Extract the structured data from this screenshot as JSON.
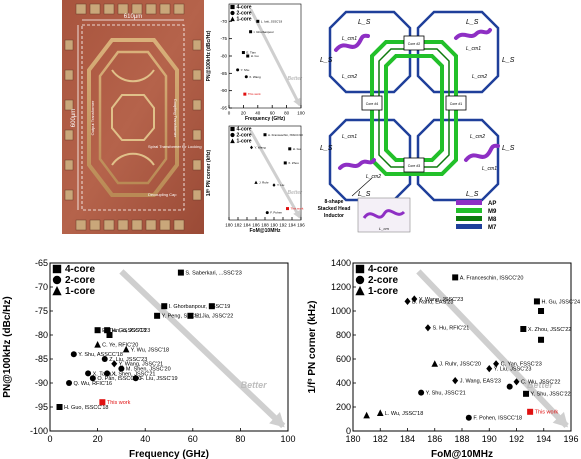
{
  "die_photo": {
    "width_label": "610μm",
    "height_label": "600μm",
    "ann_left": "Output Transformer",
    "ann_right": "Coupling Transformer",
    "ann_center": "Spiral Transformer for Locking",
    "ann_decap": "Decoupling Cap"
  },
  "schematic": {
    "labels_ls": [
      "L_S",
      "L_S",
      "L_S",
      "L_S",
      "L_S",
      "L_S",
      "L_S",
      "L_S"
    ],
    "labels_lcm": [
      "L_cm1",
      "L_cm1",
      "L_cm2",
      "L_cm2",
      "L_cm1",
      "L_cm2",
      "L_cm2",
      "L_cm1"
    ],
    "core_labels": [
      "Core #2",
      "Core #1",
      "Core #4",
      "Core #3"
    ],
    "callout_line1": "8-shape",
    "callout_line2": "Stacked Head",
    "callout_line3": "Inductor",
    "callout_sub": "L_cm",
    "legend": [
      {
        "label": "AP",
        "color": "#8e2fc4"
      },
      {
        "label": "M9",
        "color": "#22c02a"
      },
      {
        "label": "M8",
        "color": "#0d7a0d"
      },
      {
        "label": "M7",
        "color": "#1f3f9a"
      }
    ]
  },
  "chart_data": [
    {
      "id": "pn-vs-frequency",
      "type": "scatter",
      "xlabel": "Frequency (GHz)",
      "ylabel": "PN@100kHz (dBc/Hz)",
      "xlim": [
        0,
        100
      ],
      "ylim": [
        -100,
        -65
      ],
      "xticks": [
        0,
        20,
        40,
        60,
        80,
        100
      ],
      "yticks": [
        -65,
        -70,
        -75,
        -80,
        -85,
        -90,
        -95,
        -100
      ],
      "grid": false,
      "legend": [
        "4-core",
        "2-core",
        "1-core"
      ],
      "legend_position": "top-left",
      "trend_label": "Better",
      "points": [
        {
          "x": 55,
          "y": -67,
          "label": "S. Saberkari, ...SSC'23",
          "marker": "square"
        },
        {
          "x": 48,
          "y": -74,
          "label": "I. Ghorbanpour, FSSC'19",
          "marker": "square"
        },
        {
          "x": 68,
          "y": -74,
          "label": "",
          "marker": "square"
        },
        {
          "x": 59,
          "y": -76,
          "label": "H. Jia, JSSC'22",
          "marker": "square"
        },
        {
          "x": 45,
          "y": -76,
          "label": "Y. Peng, SSC'21",
          "marker": "square"
        },
        {
          "x": 24,
          "y": -79,
          "label": "H. Gu, JSSC'23",
          "marker": "square"
        },
        {
          "x": 20,
          "y": -79,
          "label": "E. Tian, ISSCC'18",
          "marker": "square"
        },
        {
          "x": 25,
          "y": -80,
          "label": "",
          "marker": "square"
        },
        {
          "x": 20,
          "y": -82,
          "label": "C. Ye, RFIC'20",
          "marker": "triangle"
        },
        {
          "x": 32,
          "y": -83,
          "label": "Y. Wu, JSSC'18",
          "marker": "triangle"
        },
        {
          "x": 10,
          "y": -84,
          "label": "Y. Shu, ASSCC'18",
          "marker": "circle"
        },
        {
          "x": 23,
          "y": -85,
          "label": "Z. Liu, JSSC'23",
          "marker": "circle"
        },
        {
          "x": 27,
          "y": -86,
          "label": "Y. Wang, JSSC'21",
          "marker": "diamond"
        },
        {
          "x": 30,
          "y": -87,
          "label": "M. Shen, JSSC'20",
          "marker": "circle"
        },
        {
          "x": 24,
          "y": -88,
          "label": "X. Shen, JSSC'21",
          "marker": "circle"
        },
        {
          "x": 16,
          "y": -88,
          "label": "X. Tang, L",
          "marker": "circle"
        },
        {
          "x": 8,
          "y": -90,
          "label": "Q. Wu, RFIC'16",
          "marker": "circle"
        },
        {
          "x": 18,
          "y": -89,
          "label": "O. Pan, ISSCC'20",
          "marker": "circle"
        },
        {
          "x": 36,
          "y": -89,
          "label": "F. Liu, JSSC'19",
          "marker": "circle"
        },
        {
          "x": 4,
          "y": -95,
          "label": "H. Guo, ISSCC'18",
          "marker": "square"
        },
        {
          "x": 22,
          "y": -94,
          "label": "This work",
          "marker": "square",
          "highlight": "#e01010"
        }
      ]
    },
    {
      "id": "flicker-corner-vs-fom",
      "type": "scatter",
      "xlabel": "FoM@10MHz",
      "ylabel": "1/f³ PN corner (kHz)",
      "xlim": [
        180,
        196
      ],
      "ylim": [
        0,
        1400
      ],
      "xticks": [
        180,
        182,
        184,
        186,
        188,
        190,
        192,
        194,
        196
      ],
      "yticks": [
        0,
        200,
        400,
        600,
        800,
        1000,
        1200,
        1400
      ],
      "grid": false,
      "legend": [
        "4-core",
        "2-core",
        "1-core"
      ],
      "legend_position": "top-left",
      "trend_label": "Better",
      "points": [
        {
          "x": 187.5,
          "y": 1280,
          "label": "A. Franceschin, ISSCC'20",
          "marker": "square"
        },
        {
          "x": 184.5,
          "y": 1100,
          "label": "Y. Wang, JSSC'23",
          "marker": "diamond"
        },
        {
          "x": 184,
          "y": 1080,
          "label": "D. Rand, EAS'23",
          "marker": "diamond"
        },
        {
          "x": 193.5,
          "y": 1080,
          "label": "H. Gu, JSSC'24",
          "marker": "square"
        },
        {
          "x": 193.8,
          "y": 1000,
          "label": "",
          "marker": "square"
        },
        {
          "x": 192.5,
          "y": 850,
          "label": "X. Zhou, JSSC'22",
          "marker": "square"
        },
        {
          "x": 185.5,
          "y": 860,
          "label": "S. Hu, RFIC'21",
          "marker": "diamond"
        },
        {
          "x": 193.8,
          "y": 760,
          "label": "",
          "marker": "square"
        },
        {
          "x": 186,
          "y": 560,
          "label": "J. Ruhr, JSSC'20",
          "marker": "triangle"
        },
        {
          "x": 190.5,
          "y": 560,
          "label": "C. Yan, FSSC'23",
          "marker": "diamond"
        },
        {
          "x": 190,
          "y": 520,
          "label": "Y. Liu, JSSC'23",
          "marker": "diamond"
        },
        {
          "x": 187.5,
          "y": 420,
          "label": "J. Wang, EAS'23",
          "marker": "diamond"
        },
        {
          "x": 192,
          "y": 410,
          "label": "C. Wu, JSSC'22",
          "marker": "diamond"
        },
        {
          "x": 191.5,
          "y": 370,
          "label": "",
          "marker": "circle"
        },
        {
          "x": 185,
          "y": 320,
          "label": "Y. Shu, JSSC'21",
          "marker": "circle"
        },
        {
          "x": 192.7,
          "y": 310,
          "label": "Y. Shu, JSSC'22",
          "marker": "square"
        },
        {
          "x": 188.5,
          "y": 110,
          "label": "F. Pohen, ISSCC'18",
          "marker": "circle"
        },
        {
          "x": 182,
          "y": 150,
          "label": "L. Wu, JSSC'18",
          "marker": "triangle"
        },
        {
          "x": 181,
          "y": 130,
          "label": "",
          "marker": "triangle"
        },
        {
          "x": 193,
          "y": 160,
          "label": "This work",
          "marker": "square",
          "highlight": "#e01010"
        }
      ]
    },
    {
      "id": "mini-pn-vs-frequency",
      "type": "scatter",
      "xlabel": "Frequency (GHz)",
      "ylabel": "PN@100kHz (dBc/Hz)",
      "xlim": [
        0,
        100
      ],
      "ylim": [
        -95,
        -65
      ],
      "xticks": [
        0,
        20,
        40,
        60,
        80,
        100
      ],
      "yticks": [
        -70,
        -75,
        -80,
        -85,
        -90,
        -95
      ],
      "legend": [
        "4-core",
        "2-core",
        "1-core"
      ],
      "trend_label": "Better",
      "points": [
        {
          "x": 40,
          "y": -70,
          "label": "L. Iotti, JSSC'19",
          "marker": "square"
        },
        {
          "x": 30,
          "y": -73,
          "label": "I. Ghorbanpour",
          "marker": "square"
        },
        {
          "x": 20,
          "y": -79,
          "label": "E. Tian",
          "marker": "square"
        },
        {
          "x": 26,
          "y": -80,
          "label": "H. Gu",
          "marker": "square"
        },
        {
          "x": 12,
          "y": -84,
          "label": "Y. Shu",
          "marker": "circle"
        },
        {
          "x": 24,
          "y": -86,
          "label": "X. Wang",
          "marker": "circle"
        },
        {
          "x": 22,
          "y": -91,
          "label": "This work",
          "marker": "square",
          "highlight": "#e01010"
        }
      ]
    },
    {
      "id": "mini-flicker-vs-fom",
      "type": "scatter",
      "xlabel": "FoM@10MHz",
      "ylabel": "1/f³ PN corner (kHz)",
      "xlim": [
        180,
        196
      ],
      "ylim": [
        0,
        1400
      ],
      "xticks": [
        180,
        182,
        184,
        186,
        188,
        190,
        192,
        194,
        196
      ],
      "legend": [
        "4-core",
        "2-core",
        "1-core"
      ],
      "trend_label": "Better",
      "points": [
        {
          "x": 188,
          "y": 1270,
          "label": "A. Franceschin, ISSCC'20",
          "marker": "square"
        },
        {
          "x": 185,
          "y": 1080,
          "label": "Y. Wang",
          "marker": "diamond"
        },
        {
          "x": 193.5,
          "y": 1060,
          "label": "H. Gu",
          "marker": "square"
        },
        {
          "x": 192.5,
          "y": 850,
          "label": "X. Zhou",
          "marker": "square"
        },
        {
          "x": 186,
          "y": 560,
          "label": "J. Ruhr",
          "marker": "triangle"
        },
        {
          "x": 190,
          "y": 520,
          "label": "Y. Liu",
          "marker": "diamond"
        },
        {
          "x": 188.5,
          "y": 110,
          "label": "F. Pohen",
          "marker": "circle"
        },
        {
          "x": 193,
          "y": 170,
          "label": "This work",
          "marker": "square",
          "highlight": "#e01010"
        }
      ]
    }
  ]
}
